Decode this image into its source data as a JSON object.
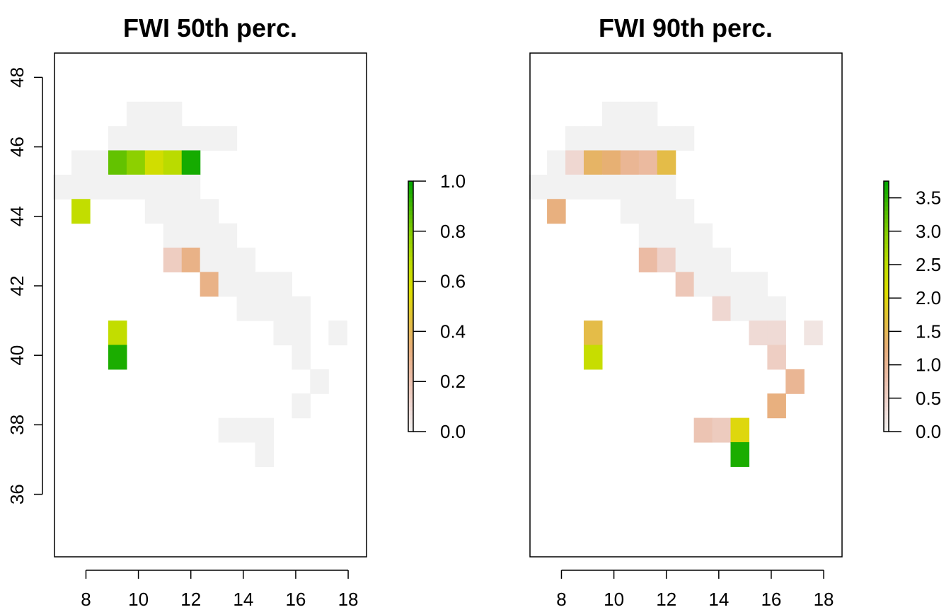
{
  "chart_data": [
    {
      "type": "heatmap",
      "title": "FWI 50th perc.",
      "xlabel": "",
      "ylabel": "",
      "xlim": [
        6.8,
        18.7
      ],
      "ylim": [
        34.2,
        48.7
      ],
      "x_ticks": [
        "8",
        "10",
        "12",
        "14",
        "16",
        "18"
      ],
      "y_ticks": [
        "36",
        "38",
        "40",
        "42",
        "44",
        "46",
        "48"
      ],
      "cell_size": [
        0.7,
        0.7
      ],
      "na_color": "#f2f2f2",
      "colorbar": {
        "min": 0.0,
        "max": 1.0,
        "ticks": [
          "0.0",
          "0.2",
          "0.4",
          "0.6",
          "0.8",
          "1.0"
        ]
      },
      "cells": [
        {
          "x": 9.9,
          "y": 46.95,
          "v": null
        },
        {
          "x": 10.6,
          "y": 46.95,
          "v": null
        },
        {
          "x": 11.3,
          "y": 46.95,
          "v": null
        },
        {
          "x": 9.2,
          "y": 46.25,
          "v": null
        },
        {
          "x": 9.9,
          "y": 46.25,
          "v": null
        },
        {
          "x": 10.6,
          "y": 46.25,
          "v": null
        },
        {
          "x": 11.3,
          "y": 46.25,
          "v": null
        },
        {
          "x": 12.0,
          "y": 46.25,
          "v": null
        },
        {
          "x": 12.7,
          "y": 46.25,
          "v": null
        },
        {
          "x": 13.4,
          "y": 46.25,
          "v": null
        },
        {
          "x": 7.8,
          "y": 45.55,
          "v": null
        },
        {
          "x": 8.5,
          "y": 45.55,
          "v": null
        },
        {
          "x": 9.2,
          "y": 45.55,
          "v": 0.85
        },
        {
          "x": 9.9,
          "y": 45.55,
          "v": 0.78
        },
        {
          "x": 10.6,
          "y": 45.55,
          "v": 0.6
        },
        {
          "x": 11.3,
          "y": 45.55,
          "v": 0.68
        },
        {
          "x": 12.0,
          "y": 45.55,
          "v": 0.97
        },
        {
          "x": 7.1,
          "y": 44.85,
          "v": null
        },
        {
          "x": 7.8,
          "y": 44.85,
          "v": null
        },
        {
          "x": 8.5,
          "y": 44.85,
          "v": null
        },
        {
          "x": 9.2,
          "y": 44.85,
          "v": null
        },
        {
          "x": 9.9,
          "y": 44.85,
          "v": null
        },
        {
          "x": 10.6,
          "y": 44.85,
          "v": null
        },
        {
          "x": 11.3,
          "y": 44.85,
          "v": null
        },
        {
          "x": 12.0,
          "y": 44.85,
          "v": null
        },
        {
          "x": 7.8,
          "y": 44.15,
          "v": 0.66
        },
        {
          "x": 10.6,
          "y": 44.15,
          "v": null
        },
        {
          "x": 11.3,
          "y": 44.15,
          "v": null
        },
        {
          "x": 12.0,
          "y": 44.15,
          "v": null
        },
        {
          "x": 12.7,
          "y": 44.15,
          "v": null
        },
        {
          "x": 11.3,
          "y": 43.45,
          "v": null
        },
        {
          "x": 12.0,
          "y": 43.45,
          "v": null
        },
        {
          "x": 12.7,
          "y": 43.45,
          "v": null
        },
        {
          "x": 13.4,
          "y": 43.45,
          "v": null
        },
        {
          "x": 11.3,
          "y": 42.75,
          "v": 0.15
        },
        {
          "x": 12.0,
          "y": 42.75,
          "v": 0.3
        },
        {
          "x": 12.7,
          "y": 42.75,
          "v": null
        },
        {
          "x": 13.4,
          "y": 42.75,
          "v": null
        },
        {
          "x": 14.1,
          "y": 42.75,
          "v": null
        },
        {
          "x": 12.7,
          "y": 42.05,
          "v": 0.3
        },
        {
          "x": 13.4,
          "y": 42.05,
          "v": null
        },
        {
          "x": 14.1,
          "y": 42.05,
          "v": null
        },
        {
          "x": 14.8,
          "y": 42.05,
          "v": null
        },
        {
          "x": 15.5,
          "y": 42.05,
          "v": null
        },
        {
          "x": 14.1,
          "y": 41.35,
          "v": null
        },
        {
          "x": 14.8,
          "y": 41.35,
          "v": null
        },
        {
          "x": 15.5,
          "y": 41.35,
          "v": null
        },
        {
          "x": 16.2,
          "y": 41.35,
          "v": null
        },
        {
          "x": 9.2,
          "y": 40.65,
          "v": 0.66
        },
        {
          "x": 15.5,
          "y": 40.65,
          "v": null
        },
        {
          "x": 16.2,
          "y": 40.65,
          "v": null
        },
        {
          "x": 17.6,
          "y": 40.65,
          "v": null
        },
        {
          "x": 9.2,
          "y": 39.95,
          "v": 0.96
        },
        {
          "x": 16.2,
          "y": 39.95,
          "v": null
        },
        {
          "x": 16.9,
          "y": 39.25,
          "v": null
        },
        {
          "x": 16.2,
          "y": 38.55,
          "v": null
        },
        {
          "x": 13.4,
          "y": 37.85,
          "v": null
        },
        {
          "x": 14.1,
          "y": 37.85,
          "v": null
        },
        {
          "x": 14.8,
          "y": 37.85,
          "v": null
        },
        {
          "x": 14.8,
          "y": 37.15,
          "v": null
        }
      ]
    },
    {
      "type": "heatmap",
      "title": "FWI 90th perc.",
      "xlabel": "",
      "ylabel": "",
      "xlim": [
        6.8,
        18.7
      ],
      "ylim": [
        34.2,
        48.7
      ],
      "x_ticks": [
        "8",
        "10",
        "12",
        "14",
        "16",
        "18"
      ],
      "y_ticks": [
        "36",
        "38",
        "40",
        "42",
        "44",
        "46",
        "48"
      ],
      "cell_size": [
        0.7,
        0.7
      ],
      "na_color": "#f2f2f2",
      "colorbar": {
        "min": 0.0,
        "max": 3.75,
        "ticks": [
          "0.0",
          "0.5",
          "1.0",
          "1.5",
          "2.0",
          "2.5",
          "3.0",
          "3.5"
        ]
      },
      "cells": [
        {
          "x": 9.9,
          "y": 46.95,
          "v": null
        },
        {
          "x": 10.6,
          "y": 46.95,
          "v": null
        },
        {
          "x": 11.3,
          "y": 46.95,
          "v": null
        },
        {
          "x": 8.5,
          "y": 46.25,
          "v": null
        },
        {
          "x": 9.2,
          "y": 46.25,
          "v": null
        },
        {
          "x": 9.9,
          "y": 46.25,
          "v": null
        },
        {
          "x": 10.6,
          "y": 46.25,
          "v": null
        },
        {
          "x": 11.3,
          "y": 46.25,
          "v": null
        },
        {
          "x": 12.0,
          "y": 46.25,
          "v": null
        },
        {
          "x": 12.7,
          "y": 46.25,
          "v": null
        },
        {
          "x": 7.8,
          "y": 45.55,
          "v": null
        },
        {
          "x": 8.5,
          "y": 45.55,
          "v": 0.4
        },
        {
          "x": 9.2,
          "y": 45.55,
          "v": 1.4
        },
        {
          "x": 9.9,
          "y": 45.55,
          "v": 1.3
        },
        {
          "x": 10.6,
          "y": 45.55,
          "v": 1.0
        },
        {
          "x": 11.3,
          "y": 45.55,
          "v": 0.9
        },
        {
          "x": 12.0,
          "y": 45.55,
          "v": 1.6
        },
        {
          "x": 7.1,
          "y": 44.85,
          "v": null
        },
        {
          "x": 7.8,
          "y": 44.85,
          "v": null
        },
        {
          "x": 8.5,
          "y": 44.85,
          "v": null
        },
        {
          "x": 9.2,
          "y": 44.85,
          "v": null
        },
        {
          "x": 9.9,
          "y": 44.85,
          "v": null
        },
        {
          "x": 10.6,
          "y": 44.85,
          "v": null
        },
        {
          "x": 11.3,
          "y": 44.85,
          "v": null
        },
        {
          "x": 12.0,
          "y": 44.85,
          "v": null
        },
        {
          "x": 7.8,
          "y": 44.15,
          "v": 1.2
        },
        {
          "x": 10.6,
          "y": 44.15,
          "v": null
        },
        {
          "x": 11.3,
          "y": 44.15,
          "v": null
        },
        {
          "x": 12.0,
          "y": 44.15,
          "v": null
        },
        {
          "x": 12.7,
          "y": 44.15,
          "v": null
        },
        {
          "x": 11.3,
          "y": 43.45,
          "v": null
        },
        {
          "x": 12.0,
          "y": 43.45,
          "v": null
        },
        {
          "x": 12.7,
          "y": 43.45,
          "v": null
        },
        {
          "x": 13.4,
          "y": 43.45,
          "v": null
        },
        {
          "x": 11.3,
          "y": 42.75,
          "v": 0.85
        },
        {
          "x": 12.0,
          "y": 42.75,
          "v": 0.5
        },
        {
          "x": 12.7,
          "y": 42.75,
          "v": null
        },
        {
          "x": 13.4,
          "y": 42.75,
          "v": null
        },
        {
          "x": 14.1,
          "y": 42.75,
          "v": null
        },
        {
          "x": 12.7,
          "y": 42.05,
          "v": 0.65
        },
        {
          "x": 13.4,
          "y": 42.05,
          "v": null
        },
        {
          "x": 14.1,
          "y": 42.05,
          "v": null
        },
        {
          "x": 14.8,
          "y": 42.05,
          "v": null
        },
        {
          "x": 15.5,
          "y": 42.05,
          "v": null
        },
        {
          "x": 14.1,
          "y": 41.35,
          "v": 0.4
        },
        {
          "x": 14.8,
          "y": 41.35,
          "v": null
        },
        {
          "x": 15.5,
          "y": 41.35,
          "v": null
        },
        {
          "x": 16.2,
          "y": 41.35,
          "v": null
        },
        {
          "x": 9.2,
          "y": 40.65,
          "v": 1.6
        },
        {
          "x": 15.5,
          "y": 40.65,
          "v": 0.35
        },
        {
          "x": 16.2,
          "y": 40.65,
          "v": 0.35
        },
        {
          "x": 17.6,
          "y": 40.65,
          "v": 0.2
        },
        {
          "x": 9.2,
          "y": 39.95,
          "v": 2.4
        },
        {
          "x": 16.2,
          "y": 39.95,
          "v": 0.55
        },
        {
          "x": 16.9,
          "y": 39.25,
          "v": 1.0
        },
        {
          "x": 16.2,
          "y": 38.55,
          "v": 1.2
        },
        {
          "x": 13.4,
          "y": 37.85,
          "v": 0.7
        },
        {
          "x": 14.1,
          "y": 37.85,
          "v": 0.6
        },
        {
          "x": 14.8,
          "y": 37.85,
          "v": 2.0
        },
        {
          "x": 14.8,
          "y": 37.15,
          "v": 3.6
        }
      ]
    }
  ],
  "palette": [
    "#f2f2f2",
    "#efd6d0",
    "#ebbca6",
    "#e8ae7a",
    "#e3bf3f",
    "#dddd00",
    "#c0dd00",
    "#8ed000",
    "#4cba00",
    "#00a600"
  ]
}
